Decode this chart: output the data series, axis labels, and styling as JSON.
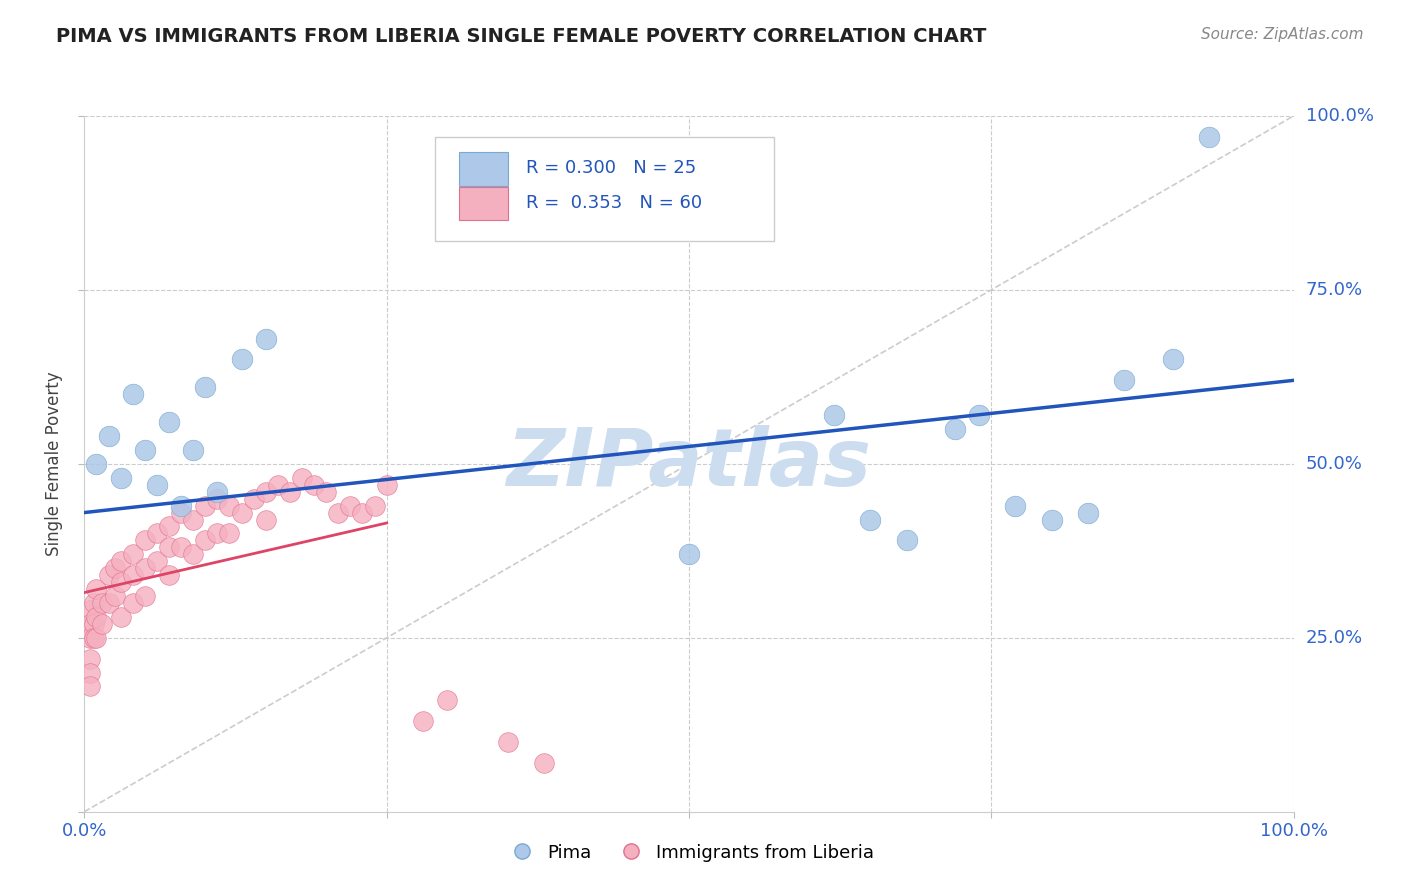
{
  "title": "PIMA VS IMMIGRANTS FROM LIBERIA SINGLE FEMALE POVERTY CORRELATION CHART",
  "source": "Source: ZipAtlas.com",
  "ylabel": "Single Female Poverty",
  "xlim": [
    0,
    1
  ],
  "ylim": [
    0,
    1
  ],
  "xticks": [
    0.0,
    0.25,
    0.5,
    0.75,
    1.0
  ],
  "yticks": [
    0.0,
    0.25,
    0.5,
    0.75,
    1.0
  ],
  "xtick_labels": [
    "0.0%",
    "",
    "",
    "",
    "100.0%"
  ],
  "pima_color": "#adc8e8",
  "liberia_color": "#f5b0c0",
  "pima_edge_color": "#7aaad0",
  "liberia_edge_color": "#e07090",
  "pima_line_color": "#2255bb",
  "liberia_line_color": "#dd4466",
  "ref_line_color": "#dddddd",
  "R_pima": 0.3,
  "N_pima": 25,
  "R_liberia": 0.353,
  "N_liberia": 60,
  "watermark_color": "#ccddf0",
  "pima_x": [
    0.01,
    0.02,
    0.03,
    0.04,
    0.05,
    0.06,
    0.07,
    0.08,
    0.09,
    0.1,
    0.11,
    0.13,
    0.15,
    0.5,
    0.62,
    0.65,
    0.68,
    0.72,
    0.74,
    0.77,
    0.8,
    0.83,
    0.86,
    0.9,
    0.93
  ],
  "pima_y": [
    0.5,
    0.54,
    0.48,
    0.6,
    0.52,
    0.47,
    0.56,
    0.44,
    0.52,
    0.61,
    0.46,
    0.65,
    0.68,
    0.37,
    0.57,
    0.42,
    0.39,
    0.55,
    0.57,
    0.44,
    0.42,
    0.43,
    0.62,
    0.65,
    0.97
  ],
  "liberia_x": [
    0.005,
    0.005,
    0.005,
    0.005,
    0.005,
    0.005,
    0.008,
    0.008,
    0.008,
    0.01,
    0.01,
    0.01,
    0.015,
    0.015,
    0.02,
    0.02,
    0.025,
    0.025,
    0.03,
    0.03,
    0.03,
    0.04,
    0.04,
    0.04,
    0.05,
    0.05,
    0.05,
    0.06,
    0.06,
    0.07,
    0.07,
    0.07,
    0.08,
    0.08,
    0.09,
    0.09,
    0.1,
    0.1,
    0.11,
    0.11,
    0.12,
    0.12,
    0.13,
    0.14,
    0.15,
    0.15,
    0.16,
    0.17,
    0.18,
    0.19,
    0.2,
    0.21,
    0.22,
    0.23,
    0.24,
    0.25,
    0.28,
    0.3,
    0.35,
    0.38
  ],
  "liberia_y": [
    0.29,
    0.27,
    0.25,
    0.22,
    0.2,
    0.18,
    0.3,
    0.27,
    0.25,
    0.32,
    0.28,
    0.25,
    0.3,
    0.27,
    0.34,
    0.3,
    0.35,
    0.31,
    0.36,
    0.33,
    0.28,
    0.37,
    0.34,
    0.3,
    0.39,
    0.35,
    0.31,
    0.4,
    0.36,
    0.41,
    0.38,
    0.34,
    0.43,
    0.38,
    0.42,
    0.37,
    0.44,
    0.39,
    0.45,
    0.4,
    0.44,
    0.4,
    0.43,
    0.45,
    0.46,
    0.42,
    0.47,
    0.46,
    0.48,
    0.47,
    0.46,
    0.43,
    0.44,
    0.43,
    0.44,
    0.47,
    0.13,
    0.16,
    0.1,
    0.07
  ],
  "pima_trend_x": [
    0,
    1
  ],
  "pima_trend_y": [
    0.43,
    0.62
  ],
  "liberia_trend_x": [
    0,
    0.25
  ],
  "liberia_trend_y": [
    0.315,
    0.415
  ]
}
